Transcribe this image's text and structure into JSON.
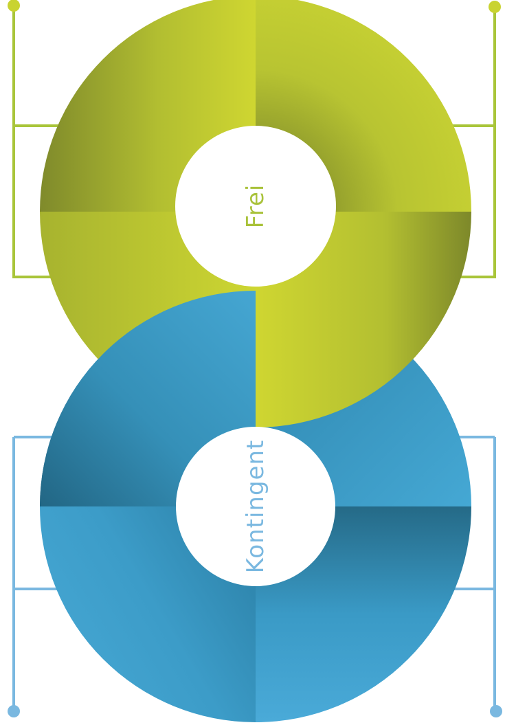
{
  "top_ring": {
    "label": "Frei",
    "color": "#c3cf2f",
    "light_color": "#cfd631",
    "dark_color": "#7f8a2b",
    "segments": 4
  },
  "bottom_ring": {
    "label": "Kontingent",
    "color": "#3a9fca",
    "light_color": "#48a9d6",
    "dark_color": "#256a87",
    "bracket_color": "#7ab8e0",
    "segments": 4
  },
  "top_bracket_color": "#a9c53a"
}
